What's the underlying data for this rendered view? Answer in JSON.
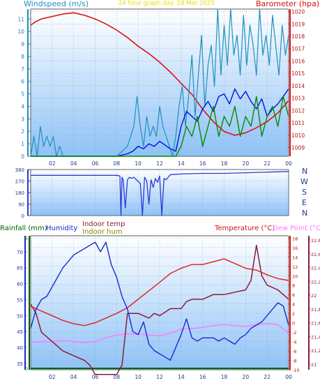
{
  "header": {
    "left_label": "Windspeed (m/s)",
    "center_label": "24 hour graph day: 28 Mar 2025",
    "right_label": "Barometer (hpa)"
  },
  "direction_labels": [
    "N",
    "W",
    "S",
    "E",
    "N"
  ],
  "bottom_header": {
    "rainfall": "Rainfall (mm)",
    "humidity": "Humidity",
    "indoor_temp": "Indoor temp",
    "indoor_hum": "Indoor hum",
    "temperature": "Temperature (°C)",
    "dew_point": "Dew Point (°C)"
  },
  "colors": {
    "windspeed": "#1e8fc0",
    "wind_avg": "#0010e0",
    "gust_green": "#008c00",
    "barometer": "#e01010",
    "direction": "#2a3ad8",
    "humidity": "#1a2ad0",
    "indoor_temp": "#8c1a3a",
    "temperature": "#e02828",
    "dew_point": "#ff78ff",
    "rain": "#006400",
    "indoor_hum": "#8a8a00"
  },
  "chart_data": [
    {
      "type": "line",
      "id": "wind-baro",
      "x_ticks": [
        "02",
        "04",
        "06",
        "08",
        "10",
        "12",
        "14",
        "16",
        "18",
        "20",
        "22",
        "00"
      ],
      "y_left_ticks": [
        "0",
        "1",
        "2",
        "3",
        "4",
        "5",
        "6",
        "7",
        "8",
        "9",
        "10",
        "11"
      ],
      "y_right_ticks": [
        "1009",
        "1010",
        "1011",
        "1012",
        "1013",
        "1014",
        "1015",
        "1016",
        "1017",
        "1018",
        "1019",
        "1020"
      ],
      "ylim_left": [
        0,
        11.8
      ],
      "ylim_right": [
        1008.3,
        1020.2
      ],
      "xlim": [
        0,
        24
      ],
      "series": [
        {
          "key": "barometer",
          "axis": "right",
          "x": [
            0,
            0.5,
            1,
            2,
            3,
            4,
            5,
            6,
            7,
            8,
            9,
            10,
            11,
            12,
            13,
            14,
            15,
            16,
            17,
            18,
            19,
            20,
            21,
            22,
            23,
            24
          ],
          "values": [
            1018.9,
            1019.2,
            1019.4,
            1019.6,
            1019.8,
            1019.9,
            1019.7,
            1019.4,
            1019.0,
            1018.5,
            1017.9,
            1017.2,
            1016.6,
            1015.9,
            1015.1,
            1014.2,
            1013.3,
            1012.1,
            1011.1,
            1010.3,
            1010.0,
            1010.2,
            1010.6,
            1011.1,
            1011.8,
            1012.8
          ]
        },
        {
          "key": "windspeed",
          "axis": "left",
          "x": [
            0,
            0.3,
            0.6,
            0.9,
            1.2,
            1.5,
            1.8,
            2.1,
            2.4,
            2.7,
            3.0,
            6,
            8,
            9.0,
            9.3,
            9.6,
            9.9,
            10.2,
            10.5,
            10.8,
            11.1,
            11.4,
            11.7,
            12.0,
            12.3,
            12.6,
            12.9,
            13.2,
            13.5,
            13.8,
            14.1,
            14.4,
            14.7,
            15.0,
            15.3,
            15.6,
            15.9,
            16.2,
            16.5,
            16.8,
            17.1,
            17.4,
            17.7,
            18.0,
            18.3,
            18.6,
            18.9,
            19.2,
            19.5,
            19.8,
            20.1,
            20.4,
            20.7,
            21.0,
            21.3,
            21.6,
            21.9,
            22.2,
            22.5,
            22.8,
            23.1,
            23.4,
            23.7,
            24.0
          ],
          "values": [
            0,
            1.6,
            0,
            2.4,
            0.8,
            1.6,
            0.8,
            1.6,
            0,
            0.8,
            0,
            0,
            0,
            0.8,
            1.6,
            2.4,
            4.8,
            2.4,
            0.8,
            3.2,
            1.6,
            2.4,
            1.6,
            4.0,
            2.4,
            1.6,
            0.8,
            0,
            1.6,
            4.0,
            5.6,
            2.4,
            4.8,
            8.1,
            3.2,
            6.5,
            9.7,
            4.0,
            7.3,
            8.9,
            5.6,
            11.8,
            6.5,
            10.5,
            7.3,
            11.8,
            8.1,
            9.7,
            6.5,
            11.3,
            7.3,
            10.5,
            8.9,
            6.5,
            11.8,
            8.1,
            9.7,
            7.3,
            11.3,
            8.9,
            6.5,
            10.5,
            8.1,
            9.7
          ]
        },
        {
          "key": "wind_avg",
          "axis": "left",
          "x": [
            0,
            2,
            4,
            6,
            8,
            9,
            9.5,
            10,
            10.5,
            11,
            11.5,
            12,
            12.5,
            13,
            13.5,
            14,
            14.5,
            15,
            15.5,
            16,
            16.5,
            17,
            17.5,
            18,
            18.5,
            19,
            19.5,
            20,
            20.5,
            21,
            21.5,
            22,
            22.5,
            23,
            23.5,
            24
          ],
          "values": [
            0,
            0,
            0,
            0,
            0,
            0.2,
            0.4,
            0.8,
            0.6,
            1.0,
            0.8,
            1.2,
            0.9,
            0.6,
            0.4,
            2.4,
            3.6,
            3.2,
            2.8,
            3.8,
            4.4,
            3.6,
            4.8,
            5.0,
            4.2,
            5.4,
            4.6,
            5.2,
            4.4,
            3.8,
            4.6,
            3.2,
            3.8,
            4.2,
            4.8,
            5.4
          ]
        },
        {
          "key": "gust_green",
          "axis": "left",
          "x": [
            0,
            12,
            13.5,
            14,
            14.5,
            15,
            15.5,
            16,
            16.5,
            17,
            17.5,
            18,
            18.5,
            19,
            19.5,
            20,
            20.5,
            21,
            21.5,
            22,
            22.5,
            23,
            23.5,
            24
          ],
          "values": [
            0,
            0,
            0,
            0.8,
            2.4,
            1.6,
            3.2,
            0.8,
            2.4,
            4.0,
            1.6,
            3.2,
            2.4,
            4.0,
            1.6,
            3.2,
            2.4,
            4.8,
            1.6,
            3.2,
            4.0,
            2.4,
            4.8,
            3.2
          ]
        }
      ]
    },
    {
      "type": "line",
      "id": "direction",
      "y_ticks": [
        "0",
        "90",
        "180",
        "270",
        "360"
      ],
      "ylim": [
        0,
        360
      ],
      "xlim": [
        0,
        24
      ],
      "series": [
        {
          "key": "direction",
          "x": [
            0,
            8.0,
            8.3,
            8.4,
            8.5,
            8.6,
            8.8,
            9.0,
            9.2,
            9.4,
            9.6,
            10.2,
            10.4,
            10.6,
            10.8,
            11.0,
            11.2,
            11.4,
            11.6,
            11.8,
            12.0,
            12.2,
            12.4,
            12.6,
            12.8,
            13.0,
            14,
            16,
            18,
            20,
            22,
            24
          ],
          "values": [
            315,
            315,
            310,
            0,
            300,
            280,
            60,
            280,
            300,
            290,
            300,
            250,
            0,
            300,
            270,
            90,
            280,
            220,
            290,
            260,
            310,
            0,
            290,
            280,
            300,
            320,
            325,
            330,
            330,
            335,
            340,
            345
          ]
        }
      ]
    },
    {
      "type": "line",
      "id": "temp-hum",
      "x_ticks": [
        "02",
        "04",
        "06",
        "08",
        "10",
        "12",
        "14",
        "16",
        "18",
        "20",
        "22",
        "00"
      ],
      "y_left_ticks": [
        "35",
        "40",
        "45",
        "50",
        "55",
        "60",
        "65",
        "70"
      ],
      "y_right_ticks": [
        "-10",
        "-8",
        "-6",
        "-4",
        "-2",
        "0",
        "2",
        "4",
        "6",
        "8",
        "10",
        "12",
        "14",
        "16",
        "18"
      ],
      "y_right2_ticks": [
        "21",
        "21,2",
        "21,4",
        "21,6",
        "21,8",
        "22",
        "22,2",
        "22,4",
        "22,6",
        "22,8"
      ],
      "y_rain_ticks": [
        "0",
        "5"
      ],
      "ylim_left": [
        33,
        75
      ],
      "ylim_right": [
        -10,
        18.5
      ],
      "xlim": [
        0,
        24
      ],
      "series": [
        {
          "key": "humidity",
          "axis": "left",
          "x": [
            0,
            0.5,
            1,
            1.5,
            2,
            2.5,
            3,
            3.5,
            4,
            4.5,
            5,
            5.5,
            6,
            6.5,
            7,
            7.5,
            8,
            8.5,
            9,
            9.5,
            10,
            10.5,
            11,
            11.5,
            12,
            12.5,
            13,
            13.5,
            14,
            14.5,
            15,
            15.5,
            16,
            16.5,
            17,
            17.5,
            18,
            18.5,
            19,
            19.5,
            20,
            20.5,
            21,
            21.5,
            22,
            22.5,
            23,
            23.5,
            24
          ],
          "values": [
            46,
            52,
            55,
            56,
            59,
            62,
            65,
            67,
            69,
            70,
            71,
            72,
            73,
            70,
            73,
            66,
            62,
            56,
            52,
            45,
            44,
            48,
            41,
            39,
            38,
            37,
            36,
            40,
            44,
            49,
            43,
            42,
            43,
            43,
            43,
            42,
            43,
            42,
            41,
            43,
            44,
            46,
            47,
            48,
            50,
            52,
            54,
            53,
            47
          ]
        },
        {
          "key": "indoor_temp",
          "axis": "right",
          "x": [
            0,
            0.5,
            1,
            2,
            3,
            4,
            5,
            5.5,
            6,
            7,
            8,
            8.5,
            9,
            10,
            11,
            11.5,
            12,
            13,
            14,
            14.5,
            15,
            16,
            17,
            18,
            19,
            20,
            20.5,
            21,
            21.5,
            22,
            23,
            24
          ],
          "values": [
            4,
            2,
            -2,
            -4,
            -6,
            -7,
            -8,
            -9,
            -11,
            -11,
            -11,
            -9,
            2,
            2,
            1,
            2,
            1.5,
            3,
            3,
            4.5,
            5,
            5,
            6,
            6,
            6.5,
            7,
            9,
            16.5,
            10,
            8,
            7,
            5
          ]
        },
        {
          "key": "temperature",
          "axis": "right",
          "x": [
            0,
            1,
            2,
            3,
            4,
            5,
            6,
            7,
            8,
            9,
            10,
            11,
            12,
            13,
            14,
            15,
            16,
            17,
            18,
            19,
            20,
            21,
            22,
            23,
            24
          ],
          "values": [
            3.5,
            2.5,
            1.5,
            0.5,
            -0.2,
            -0.6,
            0,
            1.0,
            2.0,
            3.2,
            5.0,
            6.8,
            8.6,
            10.5,
            11.6,
            12.4,
            12.4,
            13.0,
            13.6,
            12.6,
            11.6,
            11.2,
            10.2,
            9.4,
            9.0
          ]
        },
        {
          "key": "dew_point",
          "axis": "right",
          "x": [
            0,
            1,
            2,
            3,
            4,
            5,
            6,
            7,
            8,
            9,
            10,
            11,
            12,
            13,
            14,
            15,
            16,
            17,
            18,
            19,
            20,
            21,
            22,
            23,
            24
          ],
          "values": [
            -4.2,
            -4.0,
            -4.0,
            -3.8,
            -4.0,
            -4.2,
            -4.0,
            -3.2,
            -2.6,
            -2.4,
            -2.4,
            -2.6,
            -2.8,
            -2.2,
            -1.4,
            -1.2,
            -1.0,
            -0.6,
            -0.4,
            -0.6,
            -0.8,
            -0.4,
            -0.2,
            -0.4,
            -2.2
          ]
        }
      ]
    }
  ]
}
